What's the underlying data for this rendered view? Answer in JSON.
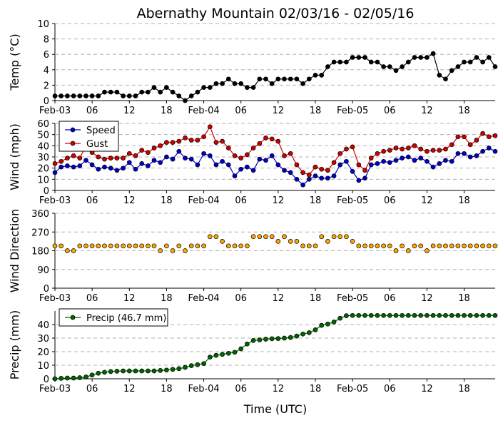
{
  "title": "Abernathy Mountain 02/03/16 - 02/05/16",
  "xlabel": "Time (UTC)",
  "x_tick_labels": [
    "Feb-03",
    "06",
    "12",
    "18",
    "Feb-04",
    "06",
    "12",
    "18",
    "Feb-05",
    "06",
    "12",
    "18"
  ],
  "x_tick_hours": [
    0,
    6,
    12,
    18,
    24,
    30,
    36,
    42,
    48,
    54,
    60,
    66
  ],
  "x_range_hours": [
    0,
    71
  ],
  "chart_data": [
    {
      "type": "line",
      "ylabel": "Temp (°C)",
      "ylim": [
        0,
        10
      ],
      "yticks": [
        "0",
        "2",
        "4",
        "6",
        "8",
        "10"
      ],
      "grid": "horizontal dashed",
      "x_units": "hours since Feb-03 00 UTC",
      "series": [
        {
          "color": "#000000",
          "x": [
            0,
            1,
            2,
            3,
            4,
            5,
            6,
            7,
            8,
            9,
            10,
            11,
            12,
            13,
            14,
            15,
            16,
            17,
            18,
            19,
            20,
            21,
            22,
            23,
            24,
            25,
            26,
            27,
            28,
            29,
            30,
            31,
            32,
            33,
            34,
            35,
            36,
            37,
            38,
            39,
            40,
            41,
            42,
            43,
            44,
            45,
            46,
            47,
            48,
            49,
            50,
            51,
            52,
            53,
            54,
            55,
            56,
            57,
            58,
            59,
            60,
            61,
            62,
            63,
            64,
            65,
            66,
            67,
            68,
            69,
            70,
            71
          ],
          "values": [
            0.6,
            0.6,
            0.6,
            0.6,
            0.6,
            0.6,
            0.6,
            0.6,
            1.1,
            1.1,
            1.1,
            0.6,
            0.6,
            0.6,
            1.1,
            1.1,
            1.7,
            1.1,
            1.7,
            1.1,
            0.6,
            0.0,
            0.6,
            1.1,
            1.7,
            1.7,
            2.2,
            2.2,
            2.8,
            2.2,
            2.2,
            1.7,
            1.7,
            2.8,
            2.8,
            2.2,
            2.8,
            2.8,
            2.8,
            2.8,
            2.2,
            2.8,
            3.3,
            3.3,
            4.4,
            5.0,
            5.0,
            5.0,
            5.6,
            5.6,
            5.6,
            5.0,
            5.0,
            4.4,
            4.4,
            3.9,
            4.4,
            5.0,
            5.6,
            5.6,
            5.6,
            6.1,
            3.3,
            2.8,
            3.9,
            4.4,
            5.0,
            5.0,
            5.6,
            5.0,
            5.6,
            4.4
          ]
        }
      ]
    },
    {
      "type": "line",
      "ylabel": "Wind (mph)",
      "ylim": [
        0,
        60
      ],
      "yticks": [
        "0",
        "10",
        "20",
        "30",
        "40",
        "50",
        "60"
      ],
      "grid": "horizontal dashed",
      "legend": "top-left",
      "x_units": "hours since Feb-03 00 UTC",
      "series": [
        {
          "name": "Speed",
          "color": "#0000cc",
          "x": [
            0,
            1,
            2,
            3,
            4,
            5,
            6,
            7,
            8,
            9,
            10,
            11,
            12,
            13,
            14,
            15,
            16,
            17,
            18,
            19,
            20,
            21,
            22,
            23,
            24,
            25,
            26,
            27,
            28,
            29,
            30,
            31,
            32,
            33,
            34,
            35,
            36,
            37,
            38,
            39,
            40,
            41,
            42,
            43,
            44,
            45,
            46,
            47,
            48,
            49,
            50,
            51,
            52,
            53,
            54,
            55,
            56,
            57,
            58,
            59,
            60,
            61,
            62,
            63,
            64,
            65,
            66,
            67,
            68,
            69,
            70,
            71
          ],
          "values": [
            16,
            21,
            22,
            21,
            22,
            27,
            23,
            19,
            21,
            20,
            18,
            20,
            25,
            19,
            24,
            22,
            27,
            25,
            30,
            28,
            35,
            29,
            28,
            23,
            33,
            31,
            23,
            26,
            23,
            13,
            19,
            21,
            18,
            28,
            27,
            31,
            23,
            18,
            16,
            10,
            5,
            10,
            13,
            11,
            11,
            13,
            23,
            26,
            17,
            9,
            11,
            23,
            24,
            26,
            25,
            27,
            29,
            30,
            27,
            29,
            26,
            21,
            24,
            27,
            26,
            33,
            33,
            30,
            31,
            35,
            38,
            35
          ]
        },
        {
          "name": "Gust",
          "color": "#cc0000",
          "x": [
            0,
            1,
            2,
            3,
            4,
            5,
            6,
            7,
            8,
            9,
            10,
            11,
            12,
            13,
            14,
            15,
            16,
            17,
            18,
            19,
            20,
            21,
            22,
            23,
            24,
            25,
            26,
            27,
            28,
            29,
            30,
            31,
            32,
            33,
            34,
            35,
            36,
            37,
            38,
            39,
            40,
            41,
            42,
            43,
            44,
            45,
            46,
            47,
            48,
            49,
            50,
            51,
            52,
            53,
            54,
            55,
            56,
            57,
            58,
            59,
            60,
            61,
            62,
            63,
            64,
            65,
            66,
            67,
            68,
            69,
            70,
            71
          ],
          "values": [
            24,
            26,
            29,
            31,
            29,
            40,
            34,
            30,
            28,
            29,
            29,
            29,
            33,
            31,
            36,
            34,
            38,
            40,
            43,
            43,
            44,
            47,
            45,
            45,
            48,
            57,
            43,
            44,
            38,
            31,
            29,
            32,
            38,
            42,
            47,
            46,
            44,
            31,
            33,
            23,
            16,
            14,
            21,
            19,
            18,
            25,
            33,
            37,
            39,
            23,
            18,
            29,
            33,
            35,
            36,
            38,
            37,
            38,
            40,
            37,
            35,
            36,
            36,
            37,
            41,
            48,
            48,
            41,
            45,
            51,
            48,
            49
          ]
        }
      ]
    },
    {
      "type": "scatter",
      "ylabel": "Wind Direction",
      "ylim": [
        0,
        360
      ],
      "yticks": [
        "0",
        "90",
        "180",
        "270",
        "360"
      ],
      "grid": "horizontal dashed",
      "x_units": "hours since Feb-03 00 UTC",
      "series": [
        {
          "color": "#ffa500",
          "x": [
            0,
            1,
            2,
            3,
            4,
            5,
            6,
            7,
            8,
            9,
            10,
            11,
            12,
            13,
            14,
            15,
            16,
            17,
            18,
            19,
            20,
            21,
            22,
            23,
            24,
            25,
            26,
            27,
            28,
            29,
            30,
            31,
            32,
            33,
            34,
            35,
            36,
            37,
            38,
            39,
            40,
            41,
            42,
            43,
            44,
            45,
            46,
            47,
            48,
            49,
            50,
            51,
            52,
            53,
            54,
            55,
            56,
            57,
            58,
            59,
            60,
            61,
            62,
            63,
            64,
            65,
            66,
            67,
            68,
            69,
            70,
            71
          ],
          "values": [
            203,
            203,
            180,
            180,
            203,
            203,
            203,
            203,
            203,
            203,
            203,
            203,
            203,
            203,
            203,
            203,
            203,
            180,
            203,
            180,
            203,
            180,
            203,
            203,
            203,
            248,
            248,
            225,
            203,
            203,
            203,
            203,
            248,
            248,
            248,
            248,
            225,
            248,
            225,
            225,
            203,
            203,
            203,
            248,
            225,
            248,
            248,
            248,
            225,
            203,
            203,
            203,
            203,
            203,
            203,
            180,
            203,
            180,
            203,
            203,
            180,
            203,
            203,
            203,
            203,
            203,
            203,
            203,
            203,
            203,
            203,
            203
          ]
        }
      ]
    },
    {
      "type": "line",
      "ylabel": "Precip (mm)",
      "ylim": [
        0,
        50
      ],
      "yticks": [
        "0",
        "10",
        "20",
        "30",
        "40"
      ],
      "grid": "horizontal dashed",
      "legend": "top-left",
      "x_units": "hours since Feb-03 00 UTC",
      "series": [
        {
          "name": "Precip (46.7 mm)",
          "color": "#006400",
          "x": [
            0,
            1,
            2,
            3,
            4,
            5,
            6,
            7,
            8,
            9,
            10,
            11,
            12,
            13,
            14,
            15,
            16,
            17,
            18,
            19,
            20,
            21,
            22,
            23,
            24,
            25,
            26,
            27,
            28,
            29,
            30,
            31,
            32,
            33,
            34,
            35,
            36,
            37,
            38,
            39,
            40,
            41,
            42,
            43,
            44,
            45,
            46,
            47,
            48,
            49,
            50,
            51,
            52,
            53,
            54,
            55,
            56,
            57,
            58,
            59,
            60,
            61,
            62,
            63,
            64,
            65,
            66,
            67,
            68,
            69,
            70,
            71
          ],
          "values": [
            0.0,
            0.3,
            0.5,
            0.5,
            0.8,
            1.3,
            2.8,
            4.1,
            4.8,
            5.3,
            5.6,
            5.8,
            5.8,
            5.8,
            5.8,
            5.8,
            5.8,
            6.1,
            6.4,
            6.9,
            7.4,
            8.4,
            9.7,
            10.4,
            11.2,
            16.0,
            17.3,
            18.0,
            18.8,
            19.6,
            22.1,
            25.7,
            28.2,
            28.7,
            29.2,
            29.5,
            29.7,
            30.0,
            30.5,
            31.5,
            33.0,
            34.0,
            36.1,
            39.4,
            40.4,
            41.9,
            44.7,
            46.5,
            46.7,
            46.7,
            46.7,
            46.7,
            46.7,
            46.7,
            46.7,
            46.7,
            46.7,
            46.7,
            46.7,
            46.7,
            46.7,
            46.7,
            46.7,
            46.7,
            46.7,
            46.7,
            46.7,
            46.7,
            46.7,
            46.7,
            46.7,
            46.7
          ]
        }
      ]
    }
  ]
}
